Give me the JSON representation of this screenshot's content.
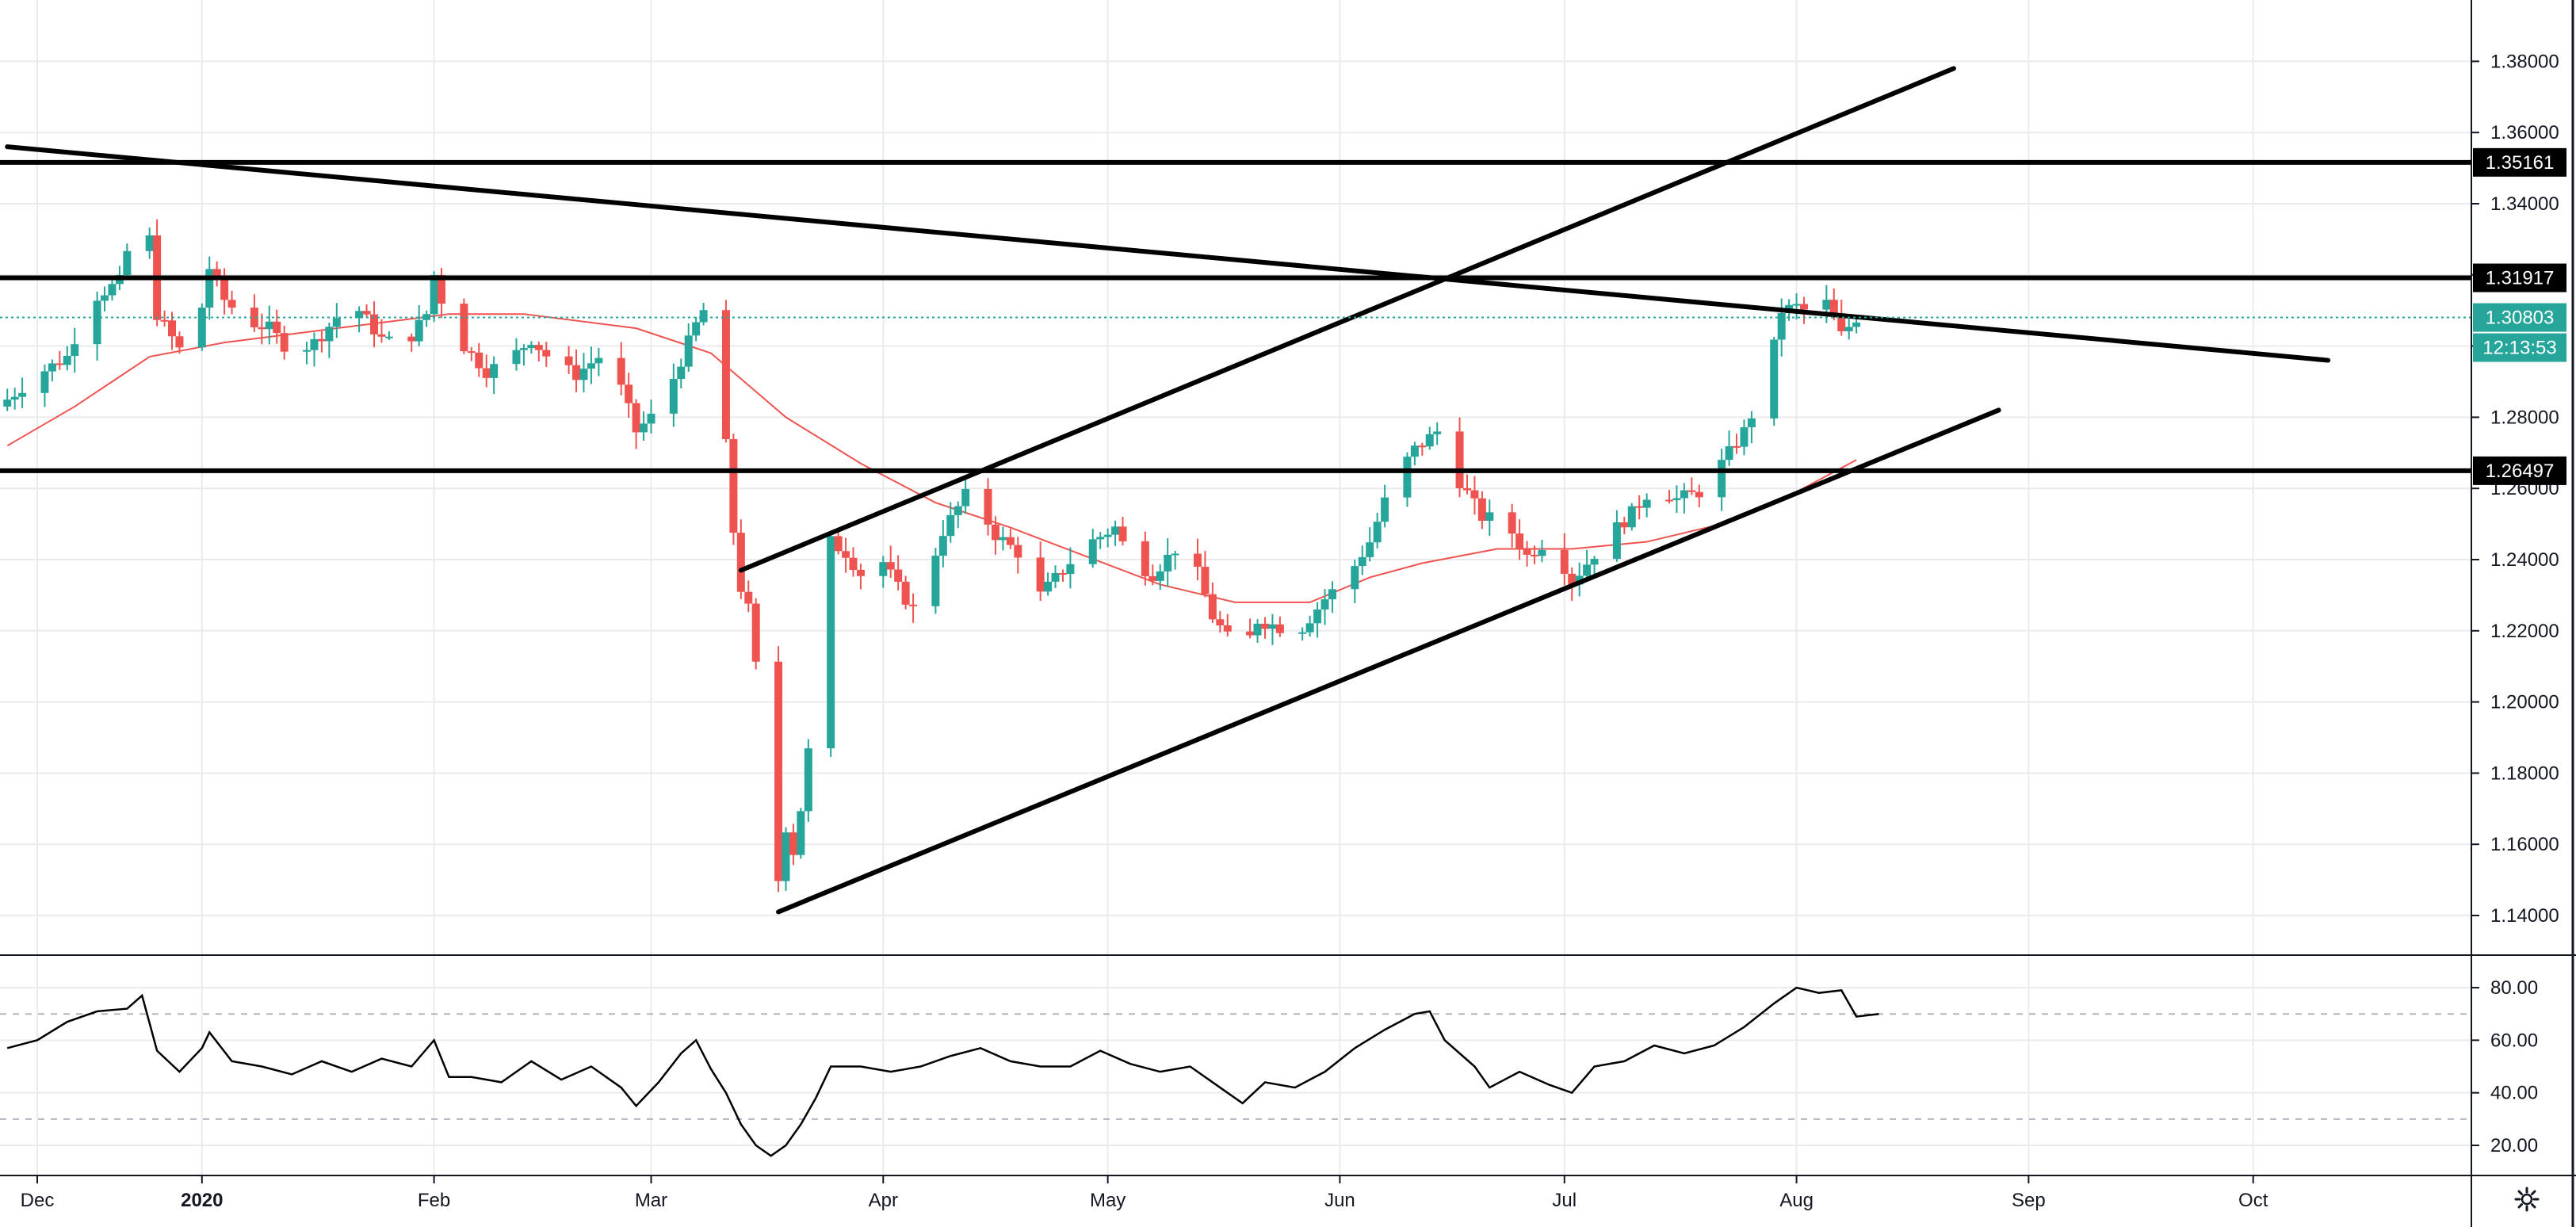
{
  "main_pane": {
    "price_ticks": [
      "1.14000",
      "1.16000",
      "1.18000",
      "1.20000",
      "1.22000",
      "1.24000",
      "1.26000",
      "1.28000",
      "1.30000",
      "1.32000",
      "1.34000",
      "1.36000",
      "1.38000"
    ],
    "level_tags": [
      {
        "label": "1.35161",
        "value": 1.35161
      },
      {
        "label": "1.31917",
        "value": 1.31917
      },
      {
        "label": "1.26497",
        "value": 1.26497
      }
    ],
    "last_price": {
      "label": "1.30803",
      "value": 1.30803,
      "countdown": "12:13:53"
    }
  },
  "rsi_pane": {
    "ticks": [
      "20.00",
      "40.00",
      "60.00",
      "80.00"
    ],
    "upper_band": 70,
    "lower_band": 30
  },
  "time_axis": {
    "labels": [
      {
        "text": "Dec",
        "t": 0
      },
      {
        "text": "2020",
        "t": 22
      },
      {
        "text": "Feb",
        "t": 53
      },
      {
        "text": "Mar",
        "t": 82
      },
      {
        "text": "Apr",
        "t": 113
      },
      {
        "text": "May",
        "t": 143
      },
      {
        "text": "Jun",
        "t": 174
      },
      {
        "text": "Jul",
        "t": 204
      },
      {
        "text": "Aug",
        "t": 235
      },
      {
        "text": "Sep",
        "t": 266
      },
      {
        "text": "Oct",
        "t": 296
      }
    ]
  },
  "settings": {
    "icon": "gear-icon"
  },
  "colors": {
    "up": "#26a69a",
    "down": "#ef5350",
    "ma": "#ef5350",
    "line": "#000000",
    "grid": "#e9ecef",
    "tag_dark": "#000000",
    "tag_last": "#26a69a"
  },
  "chart_data": [
    {
      "type": "candlestick",
      "instrument_hint": "GBPUSD daily",
      "x_unit": "days since Dec 1 2019",
      "ylim": [
        1.13,
        1.4
      ],
      "ohlc_anchors": [
        {
          "t": -4,
          "c": 1.285
        },
        {
          "t": 0,
          "c": 1.292
        },
        {
          "t": 4,
          "c": 1.297
        },
        {
          "t": 7,
          "c": 1.313
        },
        {
          "t": 11,
          "c": 1.318
        },
        {
          "t": 13,
          "c": 1.335
        },
        {
          "t": 15,
          "c": 1.33
        },
        {
          "t": 16,
          "c": 1.309
        },
        {
          "t": 19,
          "c": 1.299
        },
        {
          "t": 21,
          "c": 1.3
        },
        {
          "t": 23,
          "c": 1.322
        },
        {
          "t": 25,
          "c": 1.313
        },
        {
          "t": 28,
          "c": 1.307
        },
        {
          "t": 31,
          "c": 1.305
        },
        {
          "t": 34,
          "c": 1.298
        },
        {
          "t": 37,
          "c": 1.301
        },
        {
          "t": 40,
          "c": 1.308
        },
        {
          "t": 43,
          "c": 1.31
        },
        {
          "t": 46,
          "c": 1.302
        },
        {
          "t": 49,
          "c": 1.3
        },
        {
          "t": 52,
          "c": 1.309
        },
        {
          "t": 53,
          "c": 1.32
        },
        {
          "t": 55,
          "c": 1.306
        },
        {
          "t": 57,
          "c": 1.3
        },
        {
          "t": 60,
          "c": 1.293
        },
        {
          "t": 63,
          "c": 1.296
        },
        {
          "t": 66,
          "c": 1.302
        },
        {
          "t": 69,
          "c": 1.295
        },
        {
          "t": 72,
          "c": 1.292
        },
        {
          "t": 75,
          "c": 1.297
        },
        {
          "t": 78,
          "c": 1.288
        },
        {
          "t": 80,
          "c": 1.276
        },
        {
          "t": 82,
          "c": 1.28
        },
        {
          "t": 84,
          "c": 1.286
        },
        {
          "t": 86,
          "c": 1.296
        },
        {
          "t": 88,
          "c": 1.306
        },
        {
          "t": 89,
          "c": 1.31
        },
        {
          "t": 90,
          "c": 1.292
        },
        {
          "t": 91,
          "c": 1.286
        },
        {
          "t": 92,
          "c": 1.272
        },
        {
          "t": 93,
          "c": 1.248
        },
        {
          "t": 94,
          "c": 1.232
        },
        {
          "t": 95,
          "c": 1.226
        },
        {
          "t": 96,
          "c": 1.21
        },
        {
          "t": 97,
          "c": 1.187
        },
        {
          "t": 98,
          "c": 1.155
        },
        {
          "t": 99,
          "c": 1.15
        },
        {
          "t": 100,
          "c": 1.165
        },
        {
          "t": 101,
          "c": 1.158
        },
        {
          "t": 102,
          "c": 1.17
        },
        {
          "t": 103,
          "c": 1.186
        },
        {
          "t": 104,
          "c": 1.2
        },
        {
          "t": 105,
          "c": 1.225
        },
        {
          "t": 106,
          "c": 1.245
        },
        {
          "t": 108,
          "c": 1.242
        },
        {
          "t": 110,
          "c": 1.236
        },
        {
          "t": 112,
          "c": 1.243
        },
        {
          "t": 115,
          "c": 1.232
        },
        {
          "t": 117,
          "c": 1.226
        },
        {
          "t": 119,
          "c": 1.236
        },
        {
          "t": 121,
          "c": 1.248
        },
        {
          "t": 124,
          "c": 1.258
        },
        {
          "t": 126,
          "c": 1.254
        },
        {
          "t": 128,
          "c": 1.247
        },
        {
          "t": 131,
          "c": 1.242
        },
        {
          "t": 134,
          "c": 1.23
        },
        {
          "t": 137,
          "c": 1.237
        },
        {
          "t": 140,
          "c": 1.244
        },
        {
          "t": 144,
          "c": 1.249
        },
        {
          "t": 146,
          "c": 1.24
        },
        {
          "t": 149,
          "c": 1.236
        },
        {
          "t": 152,
          "c": 1.243
        },
        {
          "t": 155,
          "c": 1.236
        },
        {
          "t": 157,
          "c": 1.224
        },
        {
          "t": 159,
          "c": 1.218
        },
        {
          "t": 161,
          "c": 1.213
        },
        {
          "t": 163,
          "c": 1.223
        },
        {
          "t": 166,
          "c": 1.221
        },
        {
          "t": 169,
          "c": 1.221
        },
        {
          "t": 172,
          "c": 1.229
        },
        {
          "t": 175,
          "c": 1.235
        },
        {
          "t": 178,
          "c": 1.245
        },
        {
          "t": 181,
          "c": 1.262
        },
        {
          "t": 184,
          "c": 1.271
        },
        {
          "t": 187,
          "c": 1.276
        },
        {
          "t": 190,
          "c": 1.262
        },
        {
          "t": 193,
          "c": 1.252
        },
        {
          "t": 196,
          "c": 1.251
        },
        {
          "t": 199,
          "c": 1.241
        },
        {
          "t": 202,
          "c": 1.246
        },
        {
          "t": 205,
          "c": 1.234
        },
        {
          "t": 207,
          "c": 1.239
        },
        {
          "t": 210,
          "c": 1.247
        },
        {
          "t": 213,
          "c": 1.253
        },
        {
          "t": 216,
          "c": 1.261
        },
        {
          "t": 219,
          "c": 1.257
        },
        {
          "t": 222,
          "c": 1.259
        },
        {
          "t": 225,
          "c": 1.267
        },
        {
          "t": 228,
          "c": 1.276
        },
        {
          "t": 231,
          "c": 1.29
        },
        {
          "t": 233,
          "c": 1.31
        },
        {
          "t": 235,
          "c": 1.311
        },
        {
          "t": 237,
          "c": 1.309
        },
        {
          "t": 239,
          "c": 1.312
        },
        {
          "t": 241,
          "c": 1.303
        },
        {
          "t": 243,
          "c": 1.308
        }
      ]
    },
    {
      "type": "line",
      "name": "moving average",
      "x_unit": "days since Dec 1 2019",
      "points": [
        {
          "t": -4,
          "v": 1.272
        },
        {
          "t": 5,
          "v": 1.283
        },
        {
          "t": 15,
          "v": 1.297
        },
        {
          "t": 25,
          "v": 1.301
        },
        {
          "t": 40,
          "v": 1.305
        },
        {
          "t": 55,
          "v": 1.309
        },
        {
          "t": 65,
          "v": 1.309
        },
        {
          "t": 80,
          "v": 1.305
        },
        {
          "t": 90,
          "v": 1.298
        },
        {
          "t": 100,
          "v": 1.28
        },
        {
          "t": 110,
          "v": 1.267
        },
        {
          "t": 120,
          "v": 1.256
        },
        {
          "t": 130,
          "v": 1.249
        },
        {
          "t": 140,
          "v": 1.241
        },
        {
          "t": 150,
          "v": 1.233
        },
        {
          "t": 160,
          "v": 1.228
        },
        {
          "t": 170,
          "v": 1.228
        },
        {
          "t": 178,
          "v": 1.235
        },
        {
          "t": 185,
          "v": 1.239
        },
        {
          "t": 195,
          "v": 1.243
        },
        {
          "t": 205,
          "v": 1.243
        },
        {
          "t": 215,
          "v": 1.245
        },
        {
          "t": 225,
          "v": 1.25
        },
        {
          "t": 235,
          "v": 1.259
        },
        {
          "t": 243,
          "v": 1.268
        }
      ]
    },
    {
      "type": "line",
      "name": "RSI",
      "x_unit": "days since Dec 1 2019",
      "ylim": [
        10,
        90
      ],
      "points": [
        {
          "t": -4,
          "v": 57
        },
        {
          "t": 0,
          "v": 60
        },
        {
          "t": 4,
          "v": 67
        },
        {
          "t": 8,
          "v": 71
        },
        {
          "t": 12,
          "v": 72
        },
        {
          "t": 14,
          "v": 77
        },
        {
          "t": 16,
          "v": 56
        },
        {
          "t": 19,
          "v": 48
        },
        {
          "t": 22,
          "v": 57
        },
        {
          "t": 23,
          "v": 63
        },
        {
          "t": 26,
          "v": 52
        },
        {
          "t": 30,
          "v": 50
        },
        {
          "t": 34,
          "v": 47
        },
        {
          "t": 38,
          "v": 52
        },
        {
          "t": 42,
          "v": 48
        },
        {
          "t": 46,
          "v": 53
        },
        {
          "t": 50,
          "v": 50
        },
        {
          "t": 53,
          "v": 60
        },
        {
          "t": 55,
          "v": 46
        },
        {
          "t": 58,
          "v": 46
        },
        {
          "t": 62,
          "v": 44
        },
        {
          "t": 66,
          "v": 52
        },
        {
          "t": 70,
          "v": 45
        },
        {
          "t": 74,
          "v": 50
        },
        {
          "t": 78,
          "v": 42
        },
        {
          "t": 80,
          "v": 35
        },
        {
          "t": 83,
          "v": 44
        },
        {
          "t": 86,
          "v": 55
        },
        {
          "t": 88,
          "v": 60
        },
        {
          "t": 90,
          "v": 49
        },
        {
          "t": 92,
          "v": 40
        },
        {
          "t": 94,
          "v": 28
        },
        {
          "t": 96,
          "v": 20
        },
        {
          "t": 98,
          "v": 16
        },
        {
          "t": 100,
          "v": 20
        },
        {
          "t": 102,
          "v": 28
        },
        {
          "t": 104,
          "v": 38
        },
        {
          "t": 106,
          "v": 50
        },
        {
          "t": 110,
          "v": 50
        },
        {
          "t": 114,
          "v": 48
        },
        {
          "t": 118,
          "v": 50
        },
        {
          "t": 122,
          "v": 54
        },
        {
          "t": 126,
          "v": 57
        },
        {
          "t": 130,
          "v": 52
        },
        {
          "t": 134,
          "v": 50
        },
        {
          "t": 138,
          "v": 50
        },
        {
          "t": 142,
          "v": 56
        },
        {
          "t": 146,
          "v": 51
        },
        {
          "t": 150,
          "v": 48
        },
        {
          "t": 154,
          "v": 50
        },
        {
          "t": 158,
          "v": 42
        },
        {
          "t": 161,
          "v": 36
        },
        {
          "t": 164,
          "v": 44
        },
        {
          "t": 168,
          "v": 42
        },
        {
          "t": 172,
          "v": 48
        },
        {
          "t": 176,
          "v": 57
        },
        {
          "t": 180,
          "v": 64
        },
        {
          "t": 184,
          "v": 70
        },
        {
          "t": 186,
          "v": 71
        },
        {
          "t": 188,
          "v": 60
        },
        {
          "t": 192,
          "v": 50
        },
        {
          "t": 194,
          "v": 42
        },
        {
          "t": 198,
          "v": 48
        },
        {
          "t": 202,
          "v": 43
        },
        {
          "t": 205,
          "v": 40
        },
        {
          "t": 208,
          "v": 50
        },
        {
          "t": 212,
          "v": 52
        },
        {
          "t": 216,
          "v": 58
        },
        {
          "t": 220,
          "v": 55
        },
        {
          "t": 224,
          "v": 58
        },
        {
          "t": 228,
          "v": 65
        },
        {
          "t": 232,
          "v": 74
        },
        {
          "t": 235,
          "v": 80
        },
        {
          "t": 238,
          "v": 78
        },
        {
          "t": 241,
          "v": 79
        },
        {
          "t": 243,
          "v": 69
        },
        {
          "t": 246,
          "v": 70
        }
      ]
    }
  ],
  "drawings": [
    {
      "name": "falling-resistance-trendline",
      "from": {
        "t": -4,
        "v": 1.356
      },
      "to": {
        "t": 306,
        "v": 1.296
      }
    },
    {
      "name": "upper-channel-trendline",
      "from": {
        "t": 94,
        "v": 1.237
      },
      "to": {
        "t": 256,
        "v": 1.378
      }
    },
    {
      "name": "lower-channel-trendline",
      "from": {
        "t": 99,
        "v": 1.141
      },
      "to": {
        "t": 262,
        "v": 1.282
      }
    }
  ]
}
